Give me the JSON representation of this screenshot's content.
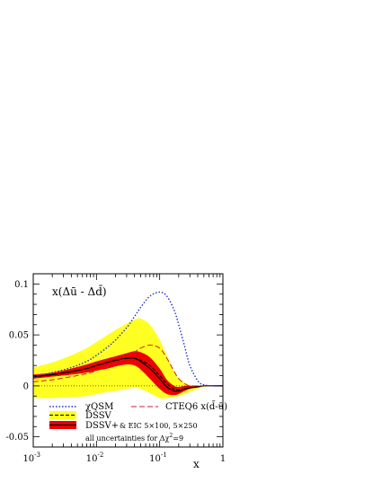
{
  "chart_data": {
    "type": "area",
    "title": "x(Δū - Δd̄)",
    "xlabel": "x",
    "ylabel": "",
    "xscale": "log",
    "xlim": [
      0.001,
      1
    ],
    "ylim": [
      -0.06,
      0.11
    ],
    "x_ticks": [
      {
        "base": "10",
        "exp": "-3"
      },
      {
        "base": "10",
        "exp": "-2"
      },
      {
        "base": "10",
        "exp": "-1"
      },
      {
        "base": "1",
        "exp": ""
      }
    ],
    "y_ticks": [
      "0.1",
      "0.05",
      "0",
      "-0.05"
    ],
    "y_tick_values": [
      0.1,
      0.05,
      0,
      -0.05
    ],
    "x": [
      0.001,
      0.002,
      0.004,
      0.007,
      0.01,
      0.015,
      0.02,
      0.03,
      0.04,
      0.05,
      0.07,
      0.1,
      0.13,
      0.17,
      0.2,
      0.25,
      0.3,
      0.4,
      0.5,
      0.7,
      1.0
    ],
    "series": [
      {
        "name": "χQSM",
        "style": "dotted",
        "color": "#1f2fd0",
        "values": [
          0.009,
          0.013,
          0.018,
          0.024,
          0.03,
          0.038,
          0.045,
          0.057,
          0.068,
          0.077,
          0.088,
          0.092,
          0.088,
          0.074,
          0.06,
          0.038,
          0.02,
          0.005,
          0.001,
          0.0,
          0.0
        ]
      },
      {
        "name": "DSSV",
        "style": "dashed",
        "color": "#000000",
        "band": "yellow",
        "values": [
          0.009,
          0.011,
          0.014,
          0.017,
          0.02,
          0.023,
          0.025,
          0.027,
          0.027,
          0.025,
          0.02,
          0.01,
          0.002,
          -0.003,
          -0.004,
          -0.003,
          -0.002,
          -0.001,
          0.0,
          0.0,
          0.0
        ],
        "band_upper": [
          0.018,
          0.023,
          0.03,
          0.037,
          0.043,
          0.05,
          0.055,
          0.061,
          0.065,
          0.066,
          0.06,
          0.045,
          0.03,
          0.014,
          0.008,
          0.003,
          0.001,
          0.0,
          0.0,
          0.0,
          0.0
        ],
        "band_lower": [
          -0.012,
          -0.012,
          -0.011,
          -0.01,
          -0.008,
          -0.006,
          -0.005,
          -0.003,
          -0.002,
          -0.003,
          -0.007,
          -0.012,
          -0.012,
          -0.011,
          -0.01,
          -0.008,
          -0.006,
          -0.003,
          -0.001,
          0.0,
          0.0
        ]
      },
      {
        "name": "DSSV+",
        "style": "solid",
        "color": "#000000",
        "band": "red",
        "values": [
          0.009,
          0.011,
          0.014,
          0.017,
          0.02,
          0.023,
          0.025,
          0.027,
          0.027,
          0.024,
          0.017,
          0.007,
          -0.001,
          -0.005,
          -0.005,
          -0.003,
          -0.002,
          -0.001,
          0.0,
          0.0,
          0.0
        ],
        "band_upper": [
          0.011,
          0.013,
          0.017,
          0.021,
          0.024,
          0.027,
          0.029,
          0.032,
          0.034,
          0.033,
          0.028,
          0.017,
          0.006,
          0.0,
          -0.001,
          0.0,
          0.0,
          0.0,
          0.0,
          0.0,
          0.0
        ],
        "band_lower": [
          0.007,
          0.009,
          0.011,
          0.013,
          0.015,
          0.017,
          0.019,
          0.021,
          0.02,
          0.016,
          0.007,
          -0.003,
          -0.008,
          -0.009,
          -0.008,
          -0.005,
          -0.003,
          -0.001,
          0.0,
          0.0,
          0.0
        ]
      },
      {
        "name": "CTEQ6 x(d̄-ū)",
        "style": "longdash",
        "color": "#cc2222",
        "values": [
          0.004,
          0.006,
          0.009,
          0.012,
          0.015,
          0.019,
          0.022,
          0.028,
          0.033,
          0.037,
          0.04,
          0.037,
          0.027,
          0.014,
          0.007,
          0.002,
          0.0,
          0.0,
          0.0,
          0.0,
          0.0
        ]
      }
    ],
    "legend": {
      "placement": "bottom",
      "chiqsm_label": "χQSM",
      "cteq_label": "CTEQ6 x(d̄-ū)",
      "dssv_label": "DSSV",
      "dssvplus_label": "DSSV+",
      "eic_label": "& EIC 5×100, 5×250",
      "note_prefix": "all uncertainties for Δχ",
      "note_sup": "2",
      "note_suffix": "=9"
    },
    "colors": {
      "yellow_band": "#ffff22",
      "red_band": "#ee0000",
      "zero_line": "#333333"
    },
    "grid": false
  }
}
